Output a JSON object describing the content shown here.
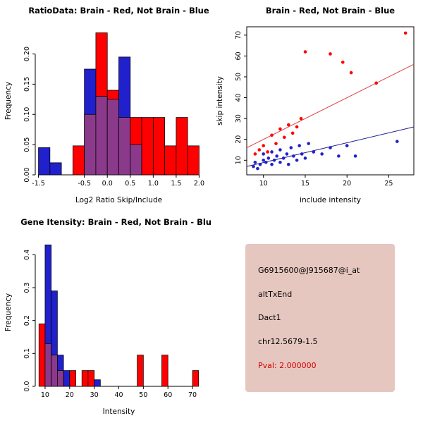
{
  "background": "#FFFFFF",
  "chart_data": [
    {
      "type": "bar",
      "title": "RatioData: Brain - Red, Not Brain - Blue",
      "xlabel": "Log2 Ratio Skip/Include",
      "ylabel": "Frequency",
      "xlim": [
        -1.57,
        2.07
      ],
      "ylim": [
        0,
        0.245
      ],
      "xticks": {
        "values": [
          -1.5,
          -0.5,
          0,
          0.5,
          1,
          1.5,
          2
        ],
        "labels": [
          "-1.5",
          "-0.5",
          "0.0",
          "0.5",
          "1.0",
          "1.5",
          "2.0"
        ]
      },
      "yticks": {
        "values": [
          0,
          0.05,
          0.1,
          0.15,
          0.2
        ],
        "labels": [
          "0.00",
          "0.05",
          "0.10",
          "0.15",
          "0.20"
        ]
      },
      "bin_start": -1.5,
      "bin_width": 0.25,
      "overlap_color": "#8B3A8B",
      "legend_note": "Brain - Red, Not Brain - Blue",
      "series": [
        {
          "name": "Brain",
          "color": "#FF0000",
          "values": [
            0,
            0,
            0,
            0.048,
            0.1,
            0.235,
            0.14,
            0.095,
            0.095,
            0.095,
            0.095,
            0.048,
            0.095,
            0.048
          ]
        },
        {
          "name": "Not Brain",
          "color": "#2020CC",
          "values": [
            0.045,
            0.02,
            0,
            0,
            0.175,
            0.13,
            0.125,
            0.195,
            0.05,
            0,
            0,
            0,
            0,
            0
          ]
        }
      ]
    },
    {
      "type": "scatter",
      "title": "Brain - Red, Not Brain - Blue",
      "xlabel": "include intensity",
      "ylabel": "skip intensity",
      "xlim": [
        8,
        28
      ],
      "ylim": [
        3,
        74
      ],
      "xticks": {
        "values": [
          10,
          15,
          20,
          25
        ],
        "labels": [
          "10",
          "15",
          "20",
          "25"
        ]
      },
      "yticks": {
        "values": [
          10,
          20,
          30,
          40,
          50,
          60,
          70
        ],
        "labels": [
          "10",
          "20",
          "30",
          "40",
          "50",
          "60",
          "70"
        ]
      },
      "series": [
        {
          "name": "Brain",
          "color": "#FF0000",
          "x": [
            9,
            9.5,
            10,
            10.5,
            11,
            11.5,
            12,
            12.5,
            13,
            13.5,
            14,
            14.5,
            15,
            18,
            19.5,
            20.5,
            23.5,
            27
          ],
          "y": [
            13,
            15,
            17,
            14,
            22,
            18,
            25,
            21,
            27,
            23,
            26,
            30,
            62,
            61,
            57,
            52,
            47,
            71
          ]
        },
        {
          "name": "Not Brain",
          "color": "#2020CC",
          "x": [
            8.8,
            9,
            9.3,
            9.6,
            10,
            10,
            10.3,
            10.6,
            11,
            11,
            11.3,
            11.6,
            12,
            12,
            12.4,
            12.8,
            13,
            13.3,
            13.6,
            14,
            14.3,
            14.6,
            15,
            15.4,
            16,
            17,
            18,
            19,
            20,
            21,
            26
          ],
          "y": [
            7,
            9,
            6,
            8,
            10,
            13,
            9,
            11,
            8,
            14,
            10,
            12,
            9,
            15,
            11,
            13,
            8,
            16,
            12,
            10,
            17,
            13,
            11,
            18,
            14,
            13,
            16,
            12,
            17,
            12,
            19
          ]
        }
      ],
      "lines": [
        {
          "name": "brain-fit-line",
          "color": "#E04040",
          "x": [
            8,
            28
          ],
          "y": [
            16,
            56
          ]
        },
        {
          "name": "notbrain-fit-line",
          "color": "#202090",
          "x": [
            8,
            28
          ],
          "y": [
            7,
            26
          ]
        }
      ]
    },
    {
      "type": "bar",
      "title": "Gene Itensity: Brain - Red, Not Brain - Blue",
      "xlabel": "Intensity",
      "ylabel": "Frequency",
      "xlim": [
        6,
        74
      ],
      "ylim": [
        0,
        0.45
      ],
      "xticks": {
        "values": [
          10,
          20,
          30,
          40,
          50,
          60,
          70
        ],
        "labels": [
          "10",
          "20",
          "30",
          "40",
          "50",
          "60",
          "70"
        ]
      },
      "yticks": {
        "values": [
          0,
          0.1,
          0.2,
          0.3,
          0.4
        ],
        "labels": [
          "0.0",
          "0.1",
          "0.2",
          "0.3",
          "0.4"
        ]
      },
      "bin_start": 7.5,
      "bin_width": 2.5,
      "overlap_color": "#8B3A8B",
      "legend_note": "Brain - Red, Not Brain - Blue",
      "series": [
        {
          "name": "Brain",
          "color": "#FF0000",
          "values": [
            0.19,
            0.13,
            0.095,
            0.048,
            0,
            0.048,
            0,
            0.048,
            0.048,
            0,
            0,
            0,
            0,
            0,
            0,
            0,
            0.095,
            0,
            0,
            0,
            0.095,
            0,
            0,
            0,
            0,
            0.048
          ]
        },
        {
          "name": "Not Brain",
          "color": "#2020CC",
          "values": [
            0,
            0.43,
            0.29,
            0.095,
            0.048,
            0,
            0,
            0,
            0,
            0.02,
            0,
            0,
            0,
            0,
            0,
            0,
            0,
            0,
            0,
            0,
            0,
            0,
            0,
            0,
            0,
            0
          ]
        }
      ]
    }
  ],
  "info_panel": {
    "bg_color": "#E6C7BF",
    "lines": [
      {
        "text": "G6915600@J915687@i_at",
        "color": "#000000"
      },
      {
        "text": "altTxEnd",
        "color": "#000000"
      },
      {
        "text": "Dact1",
        "color": "#000000"
      },
      {
        "text": "chr12.5679-1.5",
        "color": "#000000"
      },
      {
        "text": "Pval: 2.000000",
        "color": "#D40000"
      }
    ]
  }
}
